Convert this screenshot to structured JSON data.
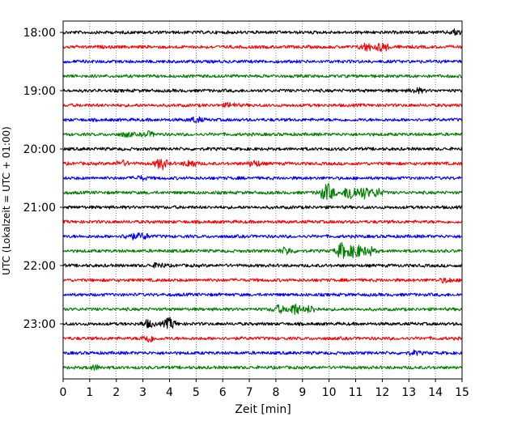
{
  "chart_data": {
    "type": "line",
    "xlabel": "Zeit  [min]",
    "ylabel": "UTC (Lokalzeit = UTC + 01:00)",
    "x_ticks": [
      "0",
      "1",
      "2",
      "3",
      "4",
      "5",
      "6",
      "7",
      "8",
      "9",
      "10",
      "11",
      "12",
      "13",
      "14",
      "15"
    ],
    "xlim": [
      0,
      15
    ],
    "y_ticks": [
      "18:00",
      "19:00",
      "20:00",
      "21:00",
      "22:00",
      "23:00"
    ],
    "ylim_time": [
      "18:00",
      "00:00"
    ],
    "grid": "vertical dotted",
    "trace_minutes_per_row": 15,
    "trace_colors": [
      "#000000",
      "#ff0000",
      "#0000ff",
      "#008000"
    ],
    "traces": [
      {
        "start": "18:00",
        "color": "#000000",
        "events": [
          {
            "t": 14.8,
            "amp": 1.0
          }
        ]
      },
      {
        "start": "18:15",
        "color": "#ff0000",
        "events": [
          {
            "t": 11.4,
            "amp": 1.3
          },
          {
            "t": 12.0,
            "amp": 1.5
          }
        ]
      },
      {
        "start": "18:30",
        "color": "#0000ff",
        "events": []
      },
      {
        "start": "18:45",
        "color": "#008000",
        "events": []
      },
      {
        "start": "19:00",
        "color": "#000000",
        "events": [
          {
            "t": 13.3,
            "amp": 0.8
          }
        ]
      },
      {
        "start": "19:15",
        "color": "#ff0000",
        "events": [
          {
            "t": 6.3,
            "amp": 0.7
          }
        ]
      },
      {
        "start": "19:30",
        "color": "#0000ff",
        "events": [
          {
            "t": 5.0,
            "amp": 0.9
          }
        ]
      },
      {
        "start": "19:45",
        "color": "#008000",
        "events": [
          {
            "t": 2.4,
            "amp": 0.7
          },
          {
            "t": 3.2,
            "amp": 0.8
          }
        ]
      },
      {
        "start": "20:00",
        "color": "#000000",
        "events": []
      },
      {
        "start": "20:15",
        "color": "#ff0000",
        "events": [
          {
            "t": 2.2,
            "amp": 0.9
          },
          {
            "t": 3.7,
            "amp": 1.9
          },
          {
            "t": 4.8,
            "amp": 1.2
          },
          {
            "t": 7.2,
            "amp": 1.0
          }
        ]
      },
      {
        "start": "20:30",
        "color": "#0000ff",
        "events": [
          {
            "t": 2.9,
            "amp": 0.6
          }
        ]
      },
      {
        "start": "20:45",
        "color": "#008000",
        "events": [
          {
            "t": 9.8,
            "amp": 1.3
          },
          {
            "t": 10.0,
            "amp": 2.3
          },
          {
            "t": 10.8,
            "amp": 3.0
          },
          {
            "t": 11.3,
            "amp": 2.0
          },
          {
            "t": 11.8,
            "amp": 1.4
          }
        ]
      },
      {
        "start": "21:00",
        "color": "#000000",
        "events": []
      },
      {
        "start": "21:15",
        "color": "#ff0000",
        "events": []
      },
      {
        "start": "21:30",
        "color": "#0000ff",
        "events": [
          {
            "t": 2.5,
            "amp": 1.0
          },
          {
            "t": 3.0,
            "amp": 1.0
          }
        ]
      },
      {
        "start": "21:45",
        "color": "#008000",
        "events": [
          {
            "t": 8.4,
            "amp": 1.2
          },
          {
            "t": 10.5,
            "amp": 2.8
          },
          {
            "t": 11.0,
            "amp": 2.5
          },
          {
            "t": 11.5,
            "amp": 1.5
          }
        ]
      },
      {
        "start": "22:00",
        "color": "#000000",
        "events": [
          {
            "t": 3.6,
            "amp": 0.8
          }
        ]
      },
      {
        "start": "22:15",
        "color": "#ff0000",
        "events": [
          {
            "t": 14.4,
            "amp": 0.7
          }
        ]
      },
      {
        "start": "22:30",
        "color": "#0000ff",
        "events": []
      },
      {
        "start": "22:45",
        "color": "#008000",
        "events": [
          {
            "t": 8.1,
            "amp": 1.3
          },
          {
            "t": 8.7,
            "amp": 2.0
          },
          {
            "t": 9.3,
            "amp": 1.1
          }
        ]
      },
      {
        "start": "23:00",
        "color": "#000000",
        "events": [
          {
            "t": 3.2,
            "amp": 1.2
          },
          {
            "t": 4.0,
            "amp": 1.9
          }
        ]
      },
      {
        "start": "23:15",
        "color": "#ff0000",
        "events": [
          {
            "t": 3.2,
            "amp": 1.3
          }
        ]
      },
      {
        "start": "23:30",
        "color": "#0000ff",
        "events": [
          {
            "t": 13.2,
            "amp": 0.6
          }
        ]
      },
      {
        "start": "23:45",
        "color": "#008000",
        "events": [
          {
            "t": 1.2,
            "amp": 0.7
          }
        ]
      }
    ]
  }
}
